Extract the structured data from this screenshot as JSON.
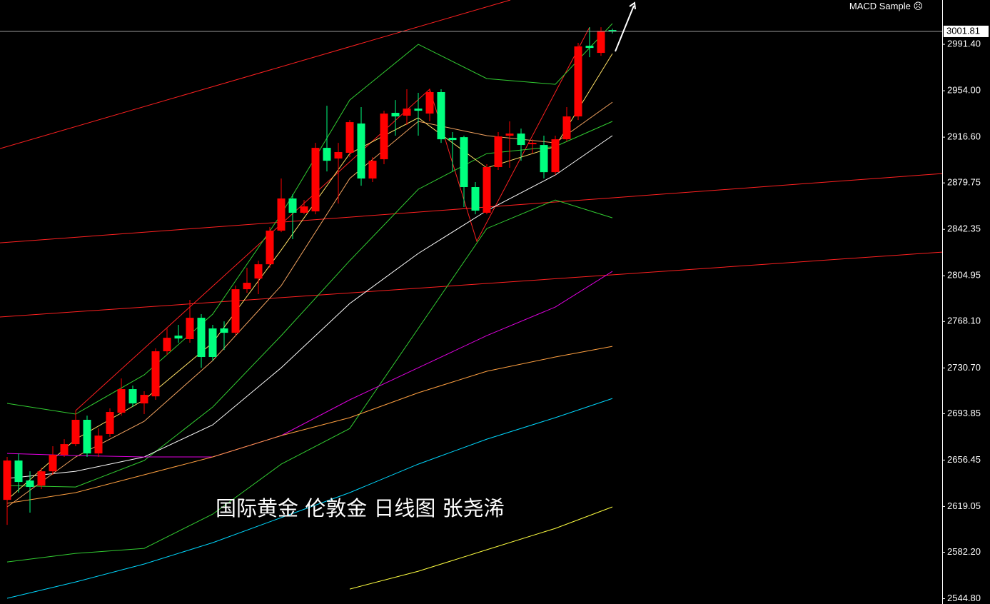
{
  "chart_data": {
    "type": "candlestick",
    "expert_label": "MACD Sample ☹",
    "annotation": "国际黄金 伦敦金 日线图 张尧浠",
    "up_color": "#ff0000",
    "down_color": "#00ff7f",
    "xlim": [
      -0.625,
      81.875
    ],
    "ylim": [
      2540.5,
      3027.1
    ],
    "yticks": [
      {
        "value": 2991.4,
        "label": "2991.40"
      },
      {
        "value": 2954.0,
        "label": "2954.00"
      },
      {
        "value": 2916.6,
        "label": "2916.60"
      },
      {
        "value": 2879.75,
        "label": "2879.75"
      },
      {
        "value": 2842.35,
        "label": "2842.35"
      },
      {
        "value": 2804.95,
        "label": "2804.95"
      },
      {
        "value": 2768.1,
        "label": "2768.10"
      },
      {
        "value": 2730.7,
        "label": "2730.70"
      },
      {
        "value": 2693.85,
        "label": "2693.85"
      },
      {
        "value": 2656.45,
        "label": "2656.45"
      },
      {
        "value": 2619.05,
        "label": "2619.05"
      },
      {
        "value": 2582.2,
        "label": "2582.20"
      },
      {
        "value": 2544.8,
        "label": "2544.80"
      }
    ],
    "current_price": 3001.81,
    "open": [
      2624.4,
      2656.1,
      2640.0,
      2635.9,
      2647.4,
      2660.7,
      2669.3,
      2688.9,
      2661.8,
      2677.4,
      2694.6,
      2713.6,
      2702.1,
      2707.8,
      2744.1,
      2756.7,
      2753.9,
      2771.1,
      2762.5,
      2762.5,
      2759.0,
      2794.1,
      2802.7,
      2814.2,
      2841.3,
      2867.2,
      2855.7,
      2856.8,
      2908.0,
      2899.4,
      2904.0,
      2927.6,
      2883.3,
      2898.8,
      2936.2,
      2933.9,
      2939.6,
      2935.6,
      2952.9,
      2916.1,
      2916.6,
      2876.4,
      2855.7,
      2892.5,
      2917.8,
      2919.5,
      2910.9,
      2910.3,
      2888.4,
      2914.9,
      2933.3,
      2990.2,
      2984.5,
      3002.9
    ],
    "high": [
      2659.0,
      2661.8,
      2647.4,
      2650.3,
      2667.6,
      2673.3,
      2696.3,
      2692.3,
      2682.0,
      2698.1,
      2722.2,
      2716.5,
      2711.9,
      2746.4,
      2762.5,
      2765.4,
      2785.5,
      2774.0,
      2765.4,
      2768.2,
      2797.0,
      2811.4,
      2817.1,
      2844.2,
      2883.3,
      2870.6,
      2866.0,
      2912.0,
      2941.9,
      2912.0,
      2930.4,
      2940.8,
      2900.5,
      2937.9,
      2946.5,
      2955.2,
      2952.3,
      2955.7,
      2955.2,
      2920.7,
      2917.8,
      2880.4,
      2894.8,
      2920.7,
      2929.3,
      2923.5,
      2914.9,
      2917.8,
      2917.8,
      2940.8,
      2992.6,
      3005.2,
      3005.2,
      3004.0
    ],
    "low": [
      2604.3,
      2630.2,
      2614.1,
      2633.1,
      2644.6,
      2659.0,
      2667.6,
      2659.0,
      2659.0,
      2675.1,
      2692.3,
      2699.2,
      2693.5,
      2705.0,
      2741.2,
      2751.0,
      2751.0,
      2730.8,
      2736.6,
      2745.2,
      2756.7,
      2791.2,
      2790.1,
      2811.4,
      2840.1,
      2834.4,
      2854.5,
      2854.5,
      2889.0,
      2863.1,
      2900.5,
      2877.5,
      2880.4,
      2894.8,
      2917.8,
      2926.4,
      2917.8,
      2929.3,
      2912.0,
      2889.0,
      2860.3,
      2854.5,
      2854.5,
      2890.2,
      2891.9,
      2897.6,
      2903.4,
      2883.3,
      2886.1,
      2913.2,
      2930.4,
      2981.0,
      2982.2,
      3000.2
    ],
    "close": [
      2656.1,
      2638.8,
      2634.8,
      2647.4,
      2660.7,
      2669.3,
      2688.9,
      2661.8,
      2676.2,
      2695.2,
      2713.6,
      2702.1,
      2709.0,
      2744.1,
      2755.0,
      2754.4,
      2771.1,
      2739.5,
      2739.5,
      2759.0,
      2794.1,
      2799.3,
      2814.2,
      2841.3,
      2867.2,
      2855.7,
      2860.8,
      2908.0,
      2897.6,
      2904.6,
      2928.7,
      2883.3,
      2897.6,
      2935.6,
      2933.3,
      2939.6,
      2937.9,
      2952.9,
      2914.9,
      2914.3,
      2876.4,
      2857.4,
      2892.5,
      2917.2,
      2919.5,
      2910.3,
      2912.0,
      2888.4,
      2914.9,
      2933.3,
      2989.7,
      2988.5,
      3002.3,
      3001.81
    ],
    "overlays": [
      {
        "color": "#32cd32",
        "x": [
          0,
          6,
          12,
          18,
          24,
          30,
          36,
          42,
          48,
          53
        ],
        "values": [
          2702.1,
          2693.5,
          2725.1,
          2774.0,
          2854.5,
          2946.5,
          2991.4,
          2963.8,
          2959.2,
          3008.1
        ]
      },
      {
        "color": "#32cd32",
        "x": [
          0,
          6,
          12,
          18,
          24,
          30,
          36,
          42,
          48,
          53
        ],
        "values": [
          2574.4,
          2581.3,
          2585.3,
          2612.9,
          2653.2,
          2681.9,
          2762.5,
          2843.0,
          2866.0,
          2851.6
        ]
      },
      {
        "color": "#32cd32",
        "x": [
          0,
          6,
          12,
          18,
          24,
          30,
          36,
          42,
          48,
          53
        ],
        "values": [
          2635.9,
          2634.8,
          2656.1,
          2699.2,
          2756.7,
          2817.1,
          2874.6,
          2903.4,
          2909.1,
          2929.3
        ]
      },
      {
        "color": "#ffffff",
        "x": [
          0,
          6,
          12,
          18,
          24,
          30,
          36,
          42,
          48,
          53
        ],
        "values": [
          2641.7,
          2647.4,
          2659.0,
          2684.8,
          2730.8,
          2782.6,
          2822.9,
          2857.4,
          2886.1,
          2917.8
        ]
      },
      {
        "color": "#ffe066",
        "x": [
          0,
          6,
          12,
          18,
          24,
          30,
          36,
          42,
          48,
          53
        ],
        "values": [
          2624.4,
          2673.3,
          2705.0,
          2751.0,
          2825.7,
          2903.4,
          2932.2,
          2891.9,
          2909.1,
          2983.9
        ]
      },
      {
        "color": "#f4a460",
        "x": [
          0,
          6,
          12,
          18,
          24,
          30,
          36,
          42,
          48,
          53
        ],
        "values": [
          2618.7,
          2659.0,
          2687.7,
          2736.6,
          2797.0,
          2883.3,
          2929.3,
          2917.8,
          2912.0,
          2944.8
        ]
      },
      {
        "color": "#e000e0",
        "x": [
          0,
          6,
          12,
          18,
          24,
          30,
          36,
          42,
          48,
          53
        ],
        "values": [
          2661.8,
          2660.1,
          2659.0,
          2659.0,
          2676.2,
          2705.0,
          2730.8,
          2756.7,
          2779.7,
          2808.5
        ]
      },
      {
        "color": "#ffa040",
        "x": [
          0,
          6,
          12,
          18,
          24,
          30,
          36,
          42,
          48,
          53
        ],
        "values": [
          2621.6,
          2630.2,
          2644.6,
          2659.0,
          2676.2,
          2690.6,
          2710.7,
          2728.0,
          2739.5,
          2748.1
        ]
      },
      {
        "color": "#00d8ff",
        "x": [
          0,
          6,
          12,
          18,
          24,
          30,
          36,
          42,
          48,
          53
        ],
        "values": [
          2545.1,
          2558.3,
          2572.7,
          2589.9,
          2610.1,
          2630.2,
          2653.2,
          2673.3,
          2690.6,
          2706.1
        ]
      },
      {
        "color": "#ffff40",
        "x": [
          0,
          6,
          12,
          18,
          24,
          30,
          36,
          42,
          48,
          53
        ],
        "values": [
          null,
          null,
          null,
          null,
          null,
          2552.5,
          2566.9,
          2584.2,
          2601.4,
          2618.7
        ]
      }
    ],
    "trendlines": [
      {
        "color": "#ff2020",
        "x": [
          -0.625,
          44.06
        ],
        "values": [
          2907.4,
          3027.1
        ]
      },
      {
        "color": "#ff2020",
        "x": [
          -0.625,
          81.875
        ],
        "values": [
          2831.5,
          2887.3
        ]
      },
      {
        "color": "#ff2020",
        "x": [
          -0.625,
          81.875
        ],
        "values": [
          2771.7,
          2824.0
        ]
      },
      {
        "color": "#ff2020",
        "x": [
          6,
          37,
          41.125,
          51
        ],
        "values": [
          2696.3,
          2955.2,
          2832.7,
          3005.2
        ]
      }
    ]
  }
}
